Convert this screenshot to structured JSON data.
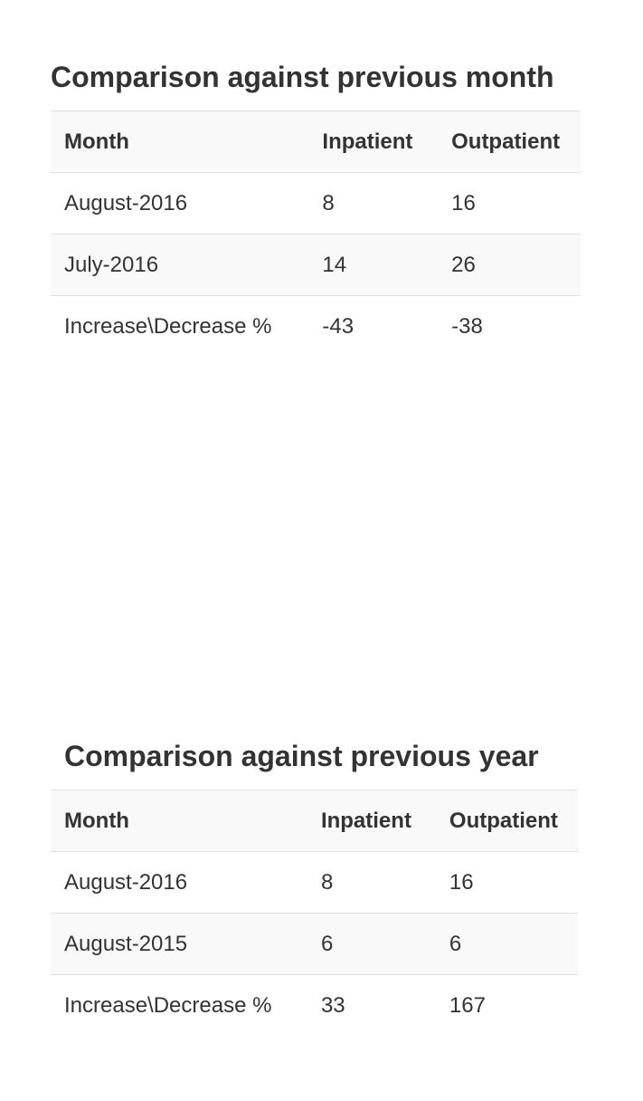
{
  "month_section": {
    "title": "Comparison against previous month",
    "headers": [
      "Month",
      "Inpatient",
      "Outpatient"
    ],
    "rows": [
      [
        "August-2016",
        "8",
        "16"
      ],
      [
        "July-2016",
        "14",
        "26"
      ],
      [
        "Increase\\Decrease %",
        "-43",
        "-38"
      ]
    ]
  },
  "year_section": {
    "title": "Comparison against previous year",
    "headers": [
      "Month",
      "Inpatient",
      "Outpatient"
    ],
    "rows": [
      [
        "August-2016",
        "8",
        "16"
      ],
      [
        "August-2015",
        "6",
        "6"
      ],
      [
        "Increase\\Decrease %",
        "33",
        "167"
      ]
    ]
  }
}
